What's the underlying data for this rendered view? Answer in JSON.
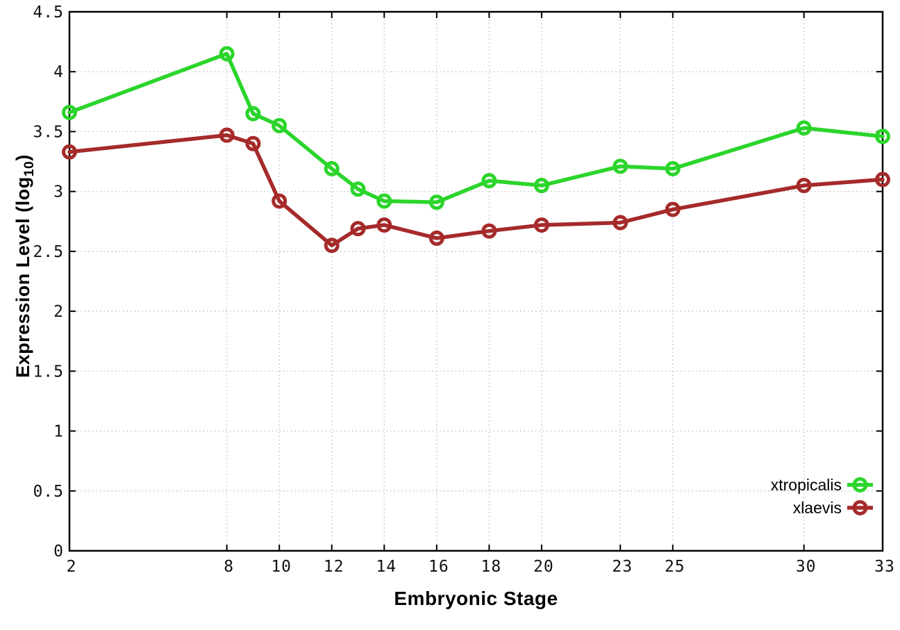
{
  "window": {
    "background": "#ffffff"
  },
  "chart_data": {
    "type": "line",
    "title": "",
    "xlabel": "Embryonic Stage",
    "ylabel": {
      "prefix": "Expression Level (log",
      "subscript": "10",
      "suffix": ")"
    },
    "x": [
      2,
      8,
      9,
      10,
      12,
      13,
      14,
      16,
      18,
      20,
      23,
      25,
      30,
      33
    ],
    "series": [
      {
        "name": "xtropicalis",
        "color": "#2bd52b",
        "values": [
          3.66,
          4.15,
          3.65,
          3.55,
          3.19,
          3.02,
          2.92,
          2.91,
          3.09,
          3.05,
          3.21,
          3.19,
          3.53,
          3.46
        ]
      },
      {
        "name": "xlaevis",
        "color": "#a52a2a",
        "values": [
          3.33,
          3.47,
          3.4,
          2.92,
          2.55,
          2.69,
          2.72,
          2.61,
          2.67,
          2.72,
          2.74,
          2.85,
          3.05,
          3.1
        ]
      }
    ],
    "xlim": [
      2,
      33
    ],
    "ylim": [
      0,
      4.5
    ],
    "xticks": [
      2,
      8,
      10,
      12,
      14,
      16,
      18,
      20,
      23,
      25,
      30,
      33
    ],
    "xtick_labels": [
      "2",
      "8",
      "10",
      "12",
      "14",
      "16",
      "18",
      "20",
      "23",
      "25",
      "30",
      "33"
    ],
    "yticks": [
      0,
      0.5,
      1,
      1.5,
      2,
      2.5,
      3,
      3.5,
      4,
      4.5
    ],
    "ytick_labels": [
      "0",
      "0.5",
      "1",
      "1.5",
      "2",
      "2.5",
      "3",
      "3.5",
      "4",
      "4.5"
    ],
    "grid": true,
    "marker": "open-circle",
    "legend_position": "inside-bottom-right",
    "colors": {
      "border": "#000000",
      "grid": "#b4b4b4",
      "tick_text": "#111111"
    }
  }
}
